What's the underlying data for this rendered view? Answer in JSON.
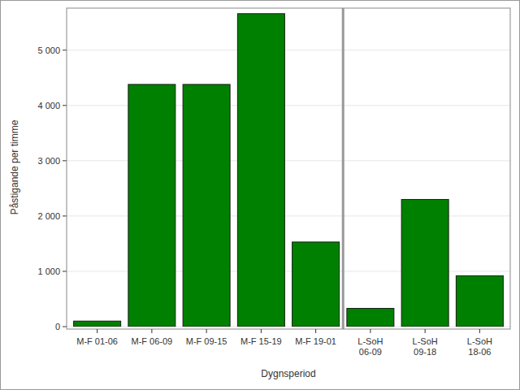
{
  "chart_data": {
    "type": "bar",
    "x_label": "Dygnsperiod",
    "y_label": "Påstigande per timme",
    "categories": [
      "M-F 01-06",
      "M-F 06-09",
      "M-F 09-15",
      "M-F 15-19",
      "M-F 19-01",
      "L-SoH 06-09",
      "L-SoH 09-18",
      "L-SoH 18-06"
    ],
    "values": [
      100,
      4380,
      4380,
      5660,
      1530,
      330,
      2300,
      920
    ],
    "color": "#008000",
    "ylim": [
      0,
      5760
    ],
    "yticks": [
      0,
      {
        "value": 1000,
        "label": "1 000"
      },
      {
        "value": 2000,
        "label": "2 000"
      },
      {
        "value": 3000,
        "label": "3 000"
      },
      {
        "value": 4000,
        "label": "4 000"
      },
      {
        "value": 5000,
        "label": "5 000"
      }
    ],
    "grid": true
  }
}
